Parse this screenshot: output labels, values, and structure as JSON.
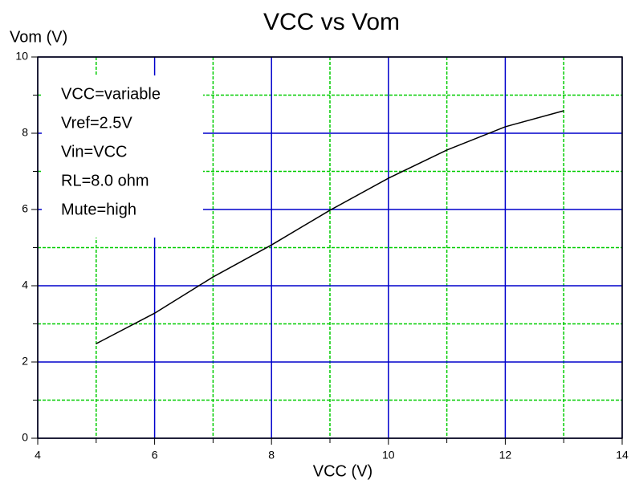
{
  "chart_data": {
    "type": "line",
    "title": "VCC vs Vom",
    "x_label": "VCC (V)",
    "y_label": "Vom (V)",
    "x": [
      5,
      6,
      7,
      8,
      9,
      10,
      11,
      12,
      13
    ],
    "series": [
      {
        "name": "Vom",
        "color": "#000000",
        "values": [
          2.48,
          3.28,
          4.23,
          5.07,
          5.98,
          6.82,
          7.56,
          8.17,
          8.59
        ]
      }
    ],
    "xlim": [
      4,
      14
    ],
    "xticks": [
      4,
      6,
      8,
      10,
      12,
      14
    ],
    "xminor": [
      5,
      7,
      9,
      11,
      13
    ],
    "ylim": [
      0,
      10
    ],
    "yticks": [
      0,
      2,
      4,
      6,
      8,
      10
    ],
    "yminor": [
      1,
      3,
      5,
      7,
      9
    ],
    "grid": true,
    "major_grid_color": "#0000cc",
    "minor_grid_color": "#00cc00",
    "annotations": [
      "VCC=variable",
      "Vref=2.5V",
      "Vin=VCC",
      "RL=8.0 ohm",
      "Mute=high"
    ]
  }
}
